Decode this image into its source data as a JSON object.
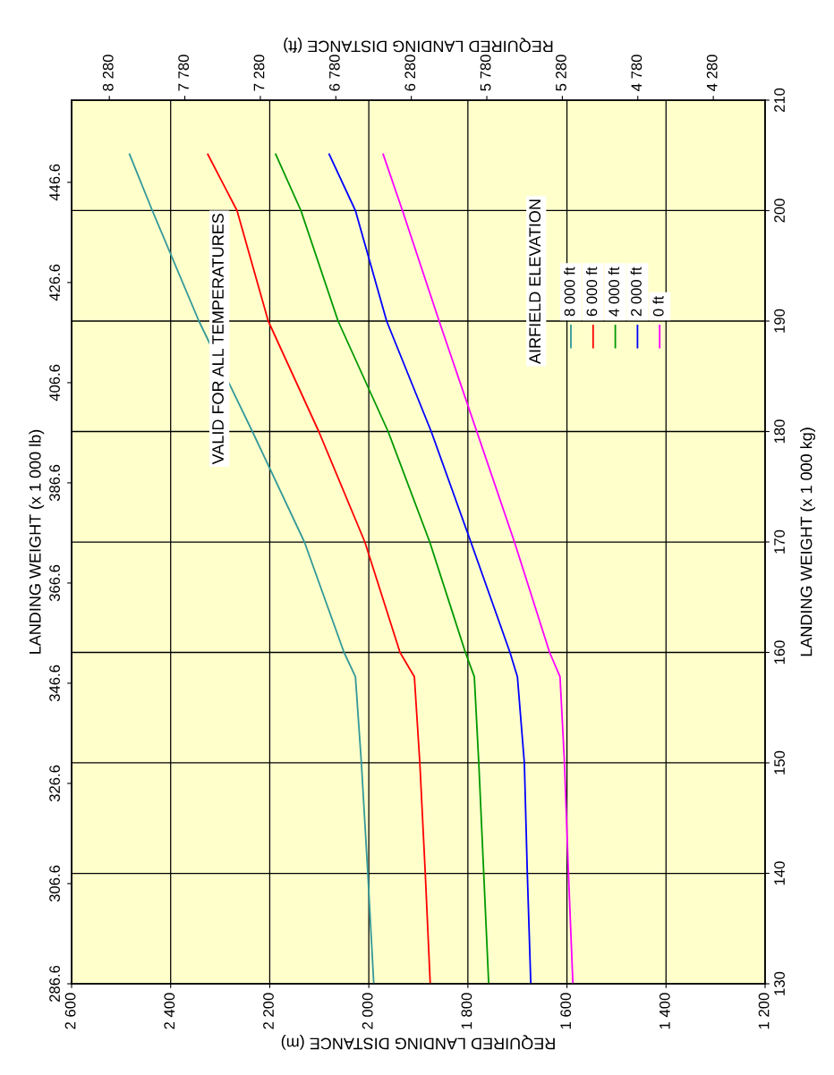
{
  "chart_data": {
    "type": "line",
    "xlabel": "REQUIRED LANDING DISTANCE (m)",
    "ylabel": "LANDING WEIGHT (x 1 000 kg)",
    "x2label": "REQUIRED LANDING DISTANCE (ft)",
    "y2label": "LANDING WEIGHT (x 1 000 lb)",
    "legend_title": "AIRFIELD ELEVATION",
    "annotations": [
      "VALID FOR ALL TEMPERATURES"
    ],
    "series": [
      {
        "name": "8 000 ft",
        "color": "#339999",
        "x": [
          1990,
          2002,
          2015,
          2027,
          2050,
          2130,
          2235,
          2343,
          2437,
          2483
        ],
        "values": [
          130,
          140,
          150,
          157.8,
          160,
          170,
          180,
          190,
          200,
          205.1
        ]
      },
      {
        "name": "6 000 ft",
        "color": "#ff0000",
        "x": [
          1876,
          1886,
          1897,
          1908,
          1937,
          2008,
          2101,
          2203,
          2266,
          2325
        ],
        "values": [
          130,
          140,
          150,
          157.8,
          160,
          170,
          180,
          190,
          200,
          205.1
        ]
      },
      {
        "name": "4 000 ft",
        "color": "#009900",
        "x": [
          1758,
          1768,
          1778,
          1787,
          1805,
          1877,
          1961,
          2062,
          2137,
          2188
        ],
        "values": [
          130,
          140,
          150,
          157.8,
          160,
          170,
          180,
          190,
          200,
          205.1
        ]
      },
      {
        "name": "2 000 ft",
        "color": "#0000ff",
        "x": [
          1673,
          1680,
          1686,
          1700,
          1715,
          1794,
          1874,
          1964,
          2027,
          2080
        ],
        "values": [
          130,
          140,
          150,
          157.8,
          160,
          170,
          180,
          190,
          200,
          205.1
        ]
      },
      {
        "name": "0 ft",
        "color": "#ff00ff",
        "x": [
          1588,
          1597,
          1605,
          1614,
          1635,
          1706,
          1782,
          1858,
          1932,
          1971
        ],
        "values": [
          130,
          140,
          150,
          157.8,
          160,
          170,
          180,
          190,
          200,
          205.1
        ]
      }
    ],
    "xlim": [
      2600,
      1200
    ],
    "xticks": [
      {
        "value": 1200,
        "label": "1 200"
      },
      {
        "value": 1400,
        "label": "1 400"
      },
      {
        "value": 1600,
        "label": "1 600"
      },
      {
        "value": 1800,
        "label": "1 800"
      },
      {
        "value": 2000,
        "label": "2 000"
      },
      {
        "value": 2200,
        "label": "2 200"
      },
      {
        "value": 2400,
        "label": "2 400"
      },
      {
        "value": 2600,
        "label": "2 600"
      }
    ],
    "x2lim": [
      8530,
      3937
    ],
    "x2ticks": [
      {
        "value": 4280,
        "label": "4 280"
      },
      {
        "value": 4780,
        "label": "4 780"
      },
      {
        "value": 5280,
        "label": "5 280"
      },
      {
        "value": 5780,
        "label": "5 780"
      },
      {
        "value": 6280,
        "label": "6 280"
      },
      {
        "value": 6780,
        "label": "6 780"
      },
      {
        "value": 7280,
        "label": "7 280"
      },
      {
        "value": 7780,
        "label": "7 780"
      },
      {
        "value": 8280,
        "label": "8 280"
      }
    ],
    "ylim": [
      130,
      210
    ],
    "yticks": [
      130,
      140,
      150,
      160,
      170,
      180,
      190,
      200,
      210
    ],
    "y2lim": [
      286.6,
      463.0
    ],
    "y2ticks": [
      286.6,
      306.6,
      326.6,
      346.6,
      366.6,
      386.6,
      406.6,
      426.6,
      446.6
    ],
    "grid": true,
    "legend": "top right",
    "marker": "none",
    "line_style": "solid"
  }
}
